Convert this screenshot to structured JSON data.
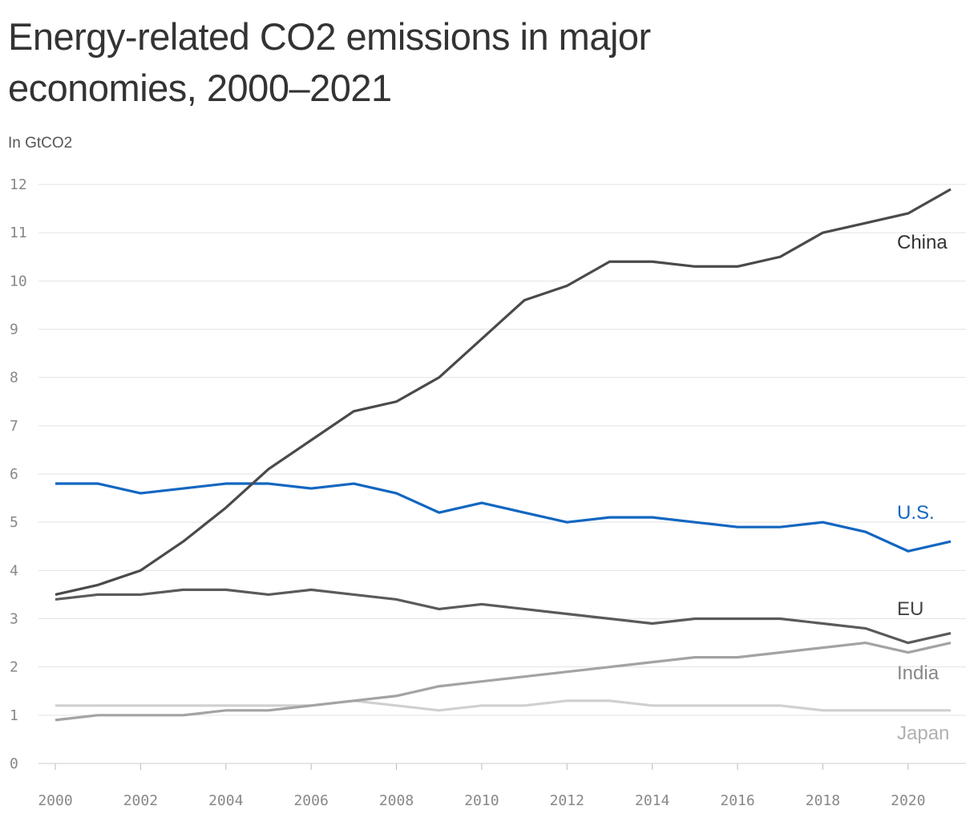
{
  "chart_data": {
    "type": "line",
    "title": "Energy-related CO2 emissions in major economies, 2000–2021",
    "subtitle": "In GtCO2",
    "x": [
      2000,
      2001,
      2002,
      2003,
      2004,
      2005,
      2006,
      2007,
      2008,
      2009,
      2010,
      2011,
      2012,
      2013,
      2014,
      2015,
      2016,
      2017,
      2018,
      2019,
      2020,
      2021
    ],
    "xticks": [
      "2000",
      "2002",
      "2004",
      "2006",
      "2008",
      "2010",
      "2012",
      "2014",
      "2016",
      "2018",
      "2020"
    ],
    "yticks": [
      "0",
      "1",
      "2",
      "3",
      "4",
      "5",
      "6",
      "7",
      "8",
      "9",
      "10",
      "11",
      "12"
    ],
    "xlim": [
      2000,
      2021
    ],
    "ylim": [
      0,
      12
    ],
    "grid": true,
    "series": [
      {
        "name": "China",
        "color": "#4a4a4a",
        "label_color": "#333333",
        "values": [
          3.5,
          3.7,
          4.0,
          4.6,
          5.3,
          6.1,
          6.7,
          7.3,
          7.5,
          8.0,
          8.8,
          9.6,
          9.9,
          10.4,
          10.4,
          10.3,
          10.3,
          10.5,
          11.0,
          11.2,
          11.4,
          11.9
        ]
      },
      {
        "name": "U.S.",
        "color": "#1266c1",
        "label_color": "#1266c1",
        "values": [
          5.8,
          5.8,
          5.6,
          5.7,
          5.8,
          5.8,
          5.7,
          5.8,
          5.6,
          5.2,
          5.4,
          5.2,
          5.0,
          5.1,
          5.1,
          5.0,
          4.9,
          4.9,
          5.0,
          4.8,
          4.4,
          4.6
        ]
      },
      {
        "name": "EU",
        "color": "#5a5a5a",
        "label_color": "#444444",
        "values": [
          3.4,
          3.5,
          3.5,
          3.6,
          3.6,
          3.5,
          3.6,
          3.5,
          3.4,
          3.2,
          3.3,
          3.2,
          3.1,
          3.0,
          2.9,
          3.0,
          3.0,
          3.0,
          2.9,
          2.8,
          2.5,
          2.7
        ]
      },
      {
        "name": "India",
        "color": "#a3a3a3",
        "label_color": "#888888",
        "values": [
          0.9,
          1.0,
          1.0,
          1.0,
          1.1,
          1.1,
          1.2,
          1.3,
          1.4,
          1.6,
          1.7,
          1.8,
          1.9,
          2.0,
          2.1,
          2.2,
          2.2,
          2.3,
          2.4,
          2.5,
          2.3,
          2.5
        ]
      },
      {
        "name": "Japan",
        "color": "#d0d0d0",
        "label_color": "#b0b0b0",
        "values": [
          1.2,
          1.2,
          1.2,
          1.2,
          1.2,
          1.2,
          1.2,
          1.3,
          1.2,
          1.1,
          1.2,
          1.2,
          1.3,
          1.3,
          1.2,
          1.2,
          1.2,
          1.2,
          1.1,
          1.1,
          1.1,
          1.1
        ]
      }
    ]
  }
}
